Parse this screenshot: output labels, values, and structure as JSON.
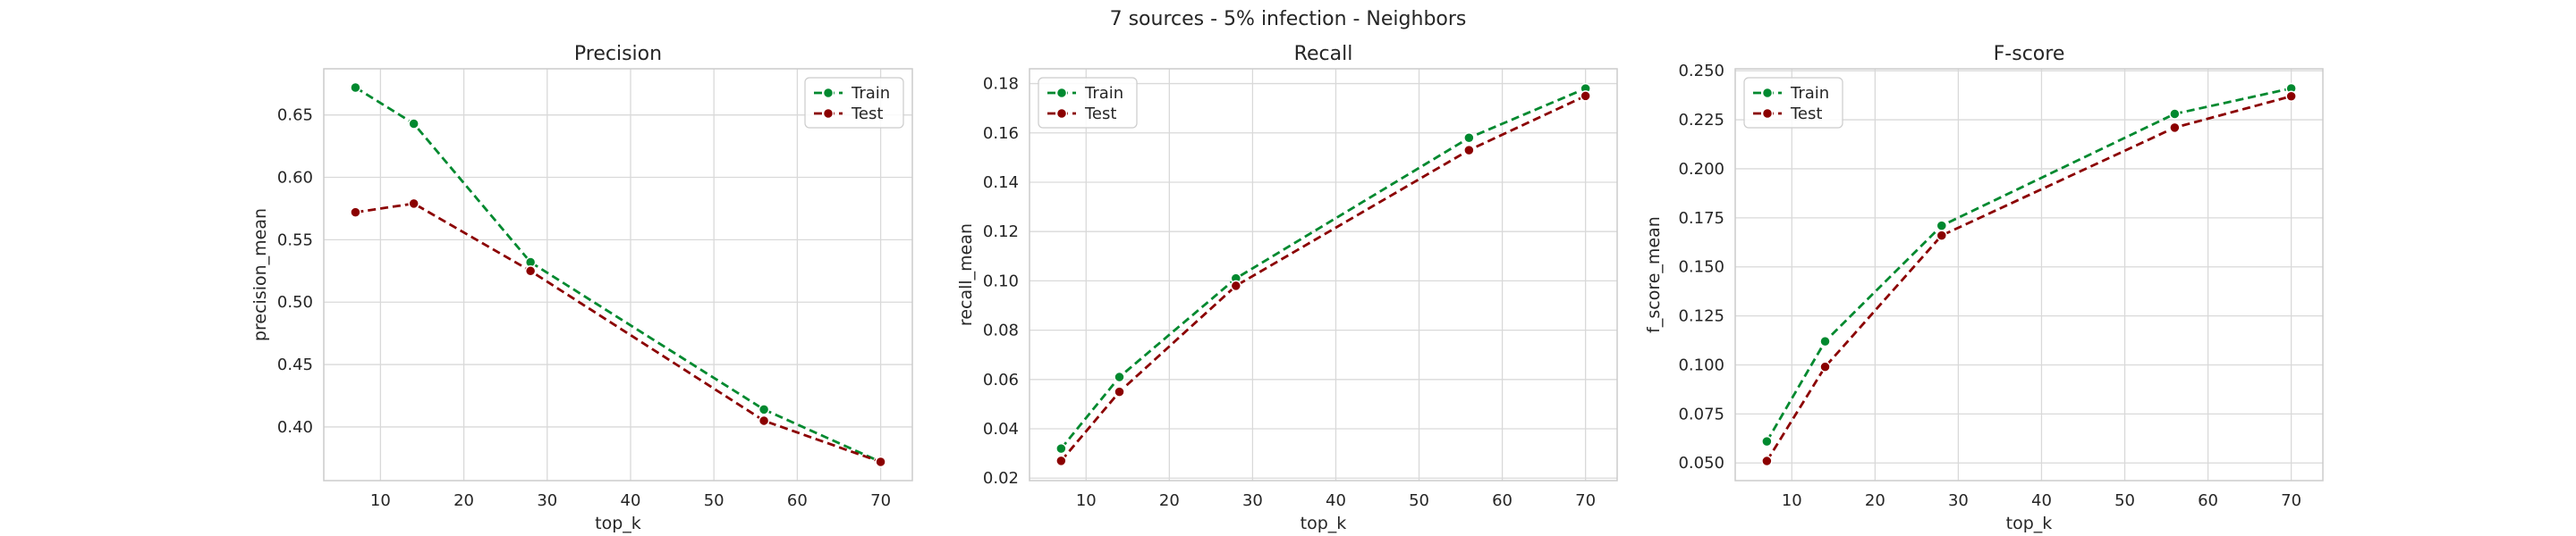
{
  "suptitle": "7 sources - 5% infection - Neighbors",
  "colors": {
    "train": "#00892f",
    "test": "#8b0000",
    "grid": "#d9d9d9",
    "frame": "#cccccc"
  },
  "chart_data": [
    {
      "type": "line",
      "title": "Precision",
      "xlabel": "top_k",
      "ylabel": "precision_mean",
      "x": [
        7,
        14,
        28,
        56,
        70
      ],
      "series": [
        {
          "name": "Train",
          "values": [
            0.672,
            0.643,
            0.532,
            0.414,
            0.372
          ]
        },
        {
          "name": "Test",
          "values": [
            0.572,
            0.579,
            0.525,
            0.405,
            0.372
          ]
        }
      ],
      "xlim": [
        3.2,
        73.8
      ],
      "ylim": [
        0.357,
        0.687
      ],
      "xticks": [
        "10",
        "20",
        "30",
        "40",
        "50",
        "60",
        "70"
      ],
      "yticks": [
        "0.40",
        "0.45",
        "0.50",
        "0.55",
        "0.60",
        "0.65"
      ],
      "legend": "top-right",
      "grid": true
    },
    {
      "type": "line",
      "title": "Recall",
      "xlabel": "top_k",
      "ylabel": "recall_mean",
      "x": [
        7,
        14,
        28,
        56,
        70
      ],
      "series": [
        {
          "name": "Train",
          "values": [
            0.032,
            0.061,
            0.101,
            0.158,
            0.178
          ]
        },
        {
          "name": "Test",
          "values": [
            0.027,
            0.055,
            0.098,
            0.153,
            0.175
          ]
        }
      ],
      "xlim": [
        3.2,
        73.8
      ],
      "ylim": [
        0.019,
        0.186
      ],
      "xticks": [
        "10",
        "20",
        "30",
        "40",
        "50",
        "60",
        "70"
      ],
      "yticks": [
        "0.02",
        "0.04",
        "0.06",
        "0.08",
        "0.10",
        "0.12",
        "0.14",
        "0.16",
        "0.18"
      ],
      "legend": "top-left",
      "grid": true
    },
    {
      "type": "line",
      "title": "F-score",
      "xlabel": "top_k",
      "ylabel": "f_score_mean",
      "x": [
        7,
        14,
        28,
        56,
        70
      ],
      "series": [
        {
          "name": "Train",
          "values": [
            0.061,
            0.112,
            0.171,
            0.228,
            0.241
          ]
        },
        {
          "name": "Test",
          "values": [
            0.051,
            0.099,
            0.166,
            0.221,
            0.237
          ]
        }
      ],
      "xlim": [
        3.2,
        73.8
      ],
      "ylim": [
        0.041,
        0.251
      ],
      "xticks": [
        "10",
        "20",
        "30",
        "40",
        "50",
        "60",
        "70"
      ],
      "yticks": [
        "0.050",
        "0.075",
        "0.100",
        "0.125",
        "0.150",
        "0.175",
        "0.200",
        "0.225",
        "0.250"
      ],
      "legend": "top-left",
      "grid": true
    }
  ]
}
